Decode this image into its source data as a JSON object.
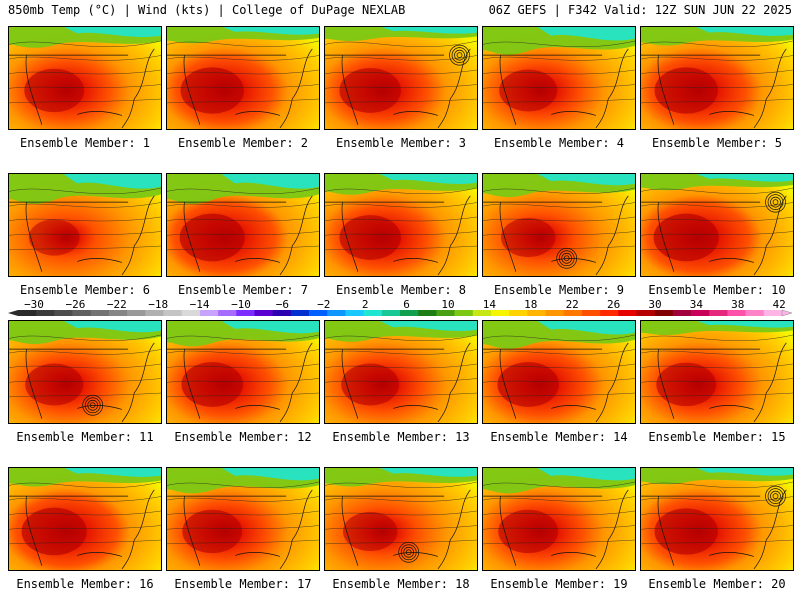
{
  "header": {
    "left": "850mb Temp (°C) | Wind (kts) | College of DuPage NEXLAB",
    "right": "06Z GEFS | F342 Valid: 12Z SUN JUN 22 2025"
  },
  "members": [
    {
      "label": "Ensemble Member: 1",
      "hot": 0.55,
      "cold": 0.3,
      "cyclone": null
    },
    {
      "label": "Ensemble Member: 2",
      "hot": 0.65,
      "cold": 0.2,
      "cyclone": null
    },
    {
      "label": "Ensemble Member: 3",
      "hot": 0.6,
      "cold": 0.15,
      "cyclone": "ne"
    },
    {
      "label": "Ensemble Member: 4",
      "hot": 0.5,
      "cold": 0.45,
      "cyclone": null
    },
    {
      "label": "Ensemble Member: 5",
      "hot": 0.65,
      "cold": 0.25,
      "cyclone": null
    },
    {
      "label": "Ensemble Member: 6",
      "hot": 0.3,
      "cold": 0.5,
      "cyclone": null
    },
    {
      "label": "Ensemble Member: 7",
      "hot": 0.7,
      "cold": 0.5,
      "cyclone": null
    },
    {
      "label": "Ensemble Member: 8",
      "hot": 0.6,
      "cold": 0.3,
      "cyclone": null
    },
    {
      "label": "Ensemble Member: 9",
      "hot": 0.4,
      "cold": 0.35,
      "cyclone": "gulf"
    },
    {
      "label": "Ensemble Member: 10",
      "hot": 0.7,
      "cold": 0.2,
      "cyclone": "ne"
    },
    {
      "label": "Ensemble Member: 11",
      "hot": 0.5,
      "cold": 0.35,
      "cyclone": "gulf"
    },
    {
      "label": "Ensemble Member: 12",
      "hot": 0.6,
      "cold": 0.4,
      "cyclone": null
    },
    {
      "label": "Ensemble Member: 13",
      "hot": 0.5,
      "cold": 0.3,
      "cyclone": null
    },
    {
      "label": "Ensemble Member: 14",
      "hot": 0.6,
      "cold": 0.45,
      "cyclone": null
    },
    {
      "label": "Ensemble Member: 15",
      "hot": 0.55,
      "cold": 0.15,
      "cyclone": null
    },
    {
      "label": "Ensemble Member: 16",
      "hot": 0.7,
      "cold": 0.25,
      "cyclone": null
    },
    {
      "label": "Ensemble Member: 17",
      "hot": 0.55,
      "cold": 0.4,
      "cyclone": null
    },
    {
      "label": "Ensemble Member: 18",
      "hot": 0.4,
      "cold": 0.25,
      "cyclone": "gulf"
    },
    {
      "label": "Ensemble Member: 19",
      "hot": 0.55,
      "cold": 0.4,
      "cyclone": null
    },
    {
      "label": "Ensemble Member: 20",
      "hot": 0.65,
      "cold": 0.2,
      "cyclone": "ne"
    }
  ],
  "colorbar": {
    "labels": [
      "−30",
      "−26",
      "−22",
      "−18",
      "−14",
      "−10",
      "−6",
      "−2",
      "2",
      "6",
      "10",
      "14",
      "18",
      "22",
      "26",
      "30",
      "34",
      "38",
      "42"
    ],
    "colors": [
      "#2b2b2b",
      "#3c3c3c",
      "#4e4e4e",
      "#606060",
      "#737373",
      "#868686",
      "#9a9a9a",
      "#b0b0b0",
      "#c4c4c4",
      "#d9d9d9",
      "#c8a2ff",
      "#a56cff",
      "#7b2cff",
      "#5a00d0",
      "#2b00b0",
      "#0030d0",
      "#0060ff",
      "#1096ff",
      "#18c8ff",
      "#1ee6d2",
      "#18c896",
      "#10a050",
      "#1e7d14",
      "#4aa014",
      "#7cc814",
      "#c8e614",
      "#f5f500",
      "#ffd200",
      "#ffb400",
      "#ff9600",
      "#ff7800",
      "#ff5000",
      "#ff2800",
      "#e60000",
      "#b40000",
      "#820000",
      "#a0003c",
      "#c8005a",
      "#e6287d",
      "#ff50aa",
      "#ff82c8",
      "#ffb4e6"
    ]
  }
}
